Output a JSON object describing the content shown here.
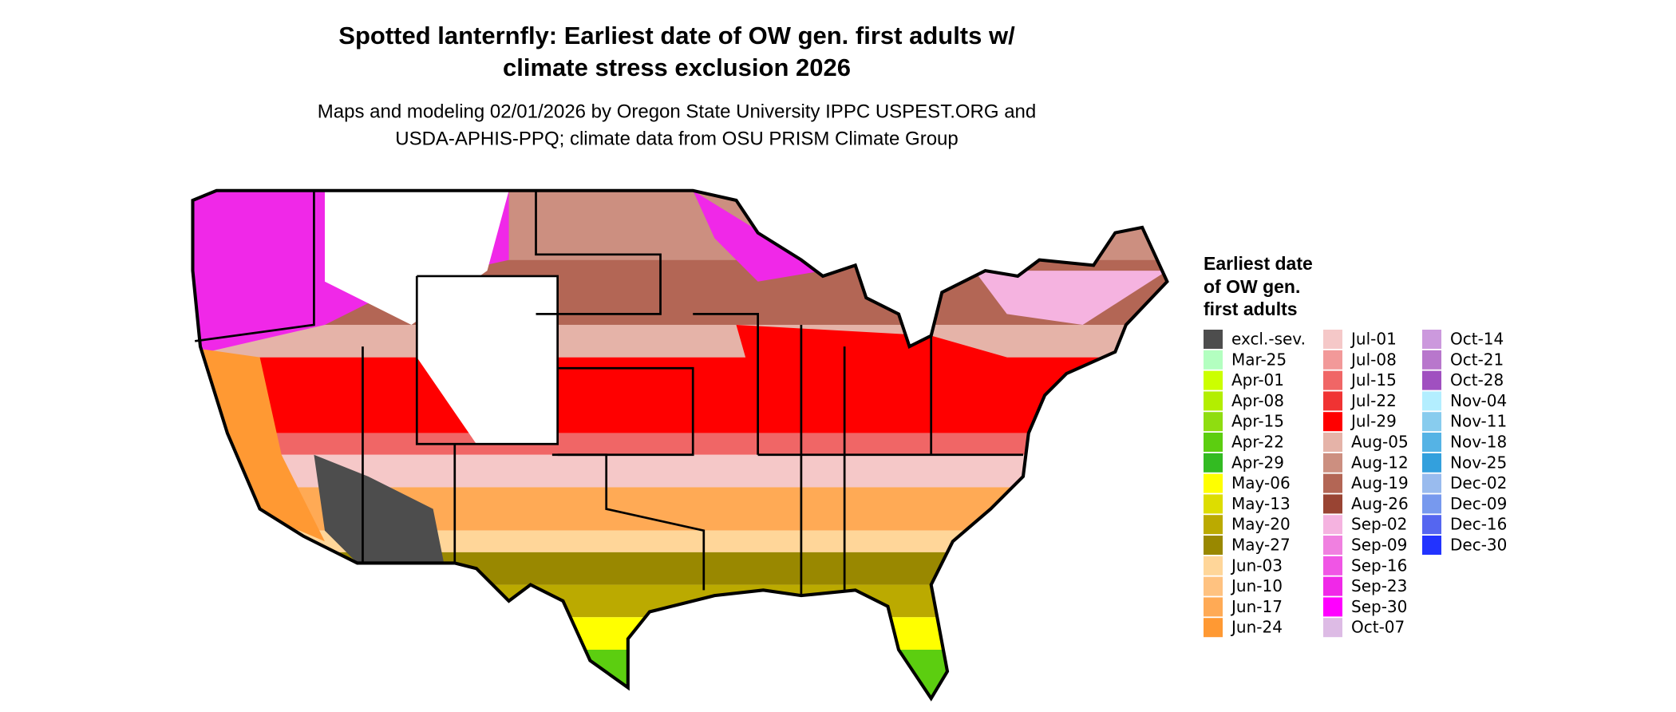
{
  "header": {
    "title": [
      "Spotted lanternfly: Earliest date of OW gen. first adults w/",
      "climate stress exclusion 2026"
    ],
    "subtitle": [
      "Maps and modeling 02/01/2026 by Oregon State University IPPC USPEST.ORG and",
      "USDA-APHIS-PPQ; climate data from OSU PRISM Climate Group"
    ]
  },
  "legend": {
    "title": [
      "Earliest date",
      "of OW gen.",
      "first adults"
    ],
    "columns": [
      [
        {
          "label": "excl.-sev.",
          "color": "#4d4d4d"
        },
        {
          "label": "Mar-25",
          "color": "#b3ffc0"
        },
        {
          "label": "Apr-01",
          "color": "#ccff00"
        },
        {
          "label": "Apr-08",
          "color": "#b3ee00"
        },
        {
          "label": "Apr-15",
          "color": "#8fdd10"
        },
        {
          "label": "Apr-22",
          "color": "#5cce10"
        },
        {
          "label": "Apr-29",
          "color": "#33bb22"
        },
        {
          "label": "May-06",
          "color": "#ffff00"
        },
        {
          "label": "May-13",
          "color": "#dddd00"
        },
        {
          "label": "May-20",
          "color": "#bbaa00"
        },
        {
          "label": "May-27",
          "color": "#998800"
        },
        {
          "label": "Jun-03",
          "color": "#ffd699"
        },
        {
          "label": "Jun-10",
          "color": "#ffc280"
        },
        {
          "label": "Jun-17",
          "color": "#ffaa55"
        },
        {
          "label": "Jun-24",
          "color": "#ff9933"
        }
      ],
      [
        {
          "label": "Jul-01",
          "color": "#f5c8c8"
        },
        {
          "label": "Jul-08",
          "color": "#f29999"
        },
        {
          "label": "Jul-15",
          "color": "#f06666"
        },
        {
          "label": "Jul-22",
          "color": "#f03333"
        },
        {
          "label": "Jul-29",
          "color": "#ff0000"
        },
        {
          "label": "Aug-05",
          "color": "#e5b3a8"
        },
        {
          "label": "Aug-12",
          "color": "#cc8f80"
        },
        {
          "label": "Aug-19",
          "color": "#b36655"
        },
        {
          "label": "Aug-26",
          "color": "#994433"
        },
        {
          "label": "Sep-02",
          "color": "#f5b3e0"
        },
        {
          "label": "Sep-09",
          "color": "#f080e0"
        },
        {
          "label": "Sep-16",
          "color": "#f055e5"
        },
        {
          "label": "Sep-23",
          "color": "#f028e8"
        },
        {
          "label": "Sep-30",
          "color": "#ff00ff"
        },
        {
          "label": "Oct-07",
          "color": "#ddbbe5"
        }
      ],
      [
        {
          "label": "Oct-14",
          "color": "#cc99dd"
        },
        {
          "label": "Oct-21",
          "color": "#b877cc"
        },
        {
          "label": "Oct-28",
          "color": "#a050c0"
        },
        {
          "label": "Nov-04",
          "color": "#b3eeff"
        },
        {
          "label": "Nov-11",
          "color": "#88ccee"
        },
        {
          "label": "Nov-18",
          "color": "#55b3e5"
        },
        {
          "label": "Nov-25",
          "color": "#33a0dd"
        },
        {
          "label": "Dec-02",
          "color": "#99bbee"
        },
        {
          "label": "Dec-09",
          "color": "#7799ee"
        },
        {
          "label": "Dec-16",
          "color": "#5566f0"
        },
        {
          "label": "Dec-30",
          "color": "#2233ff"
        }
      ]
    ]
  }
}
